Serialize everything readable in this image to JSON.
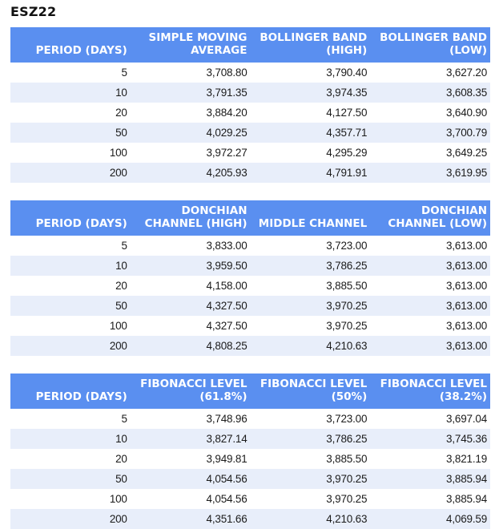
{
  "title": "ESZ22",
  "colors": {
    "header_bg": "#5A8FF0",
    "header_text": "#FFFFFF",
    "row_alt_bg": "#E8EEFA",
    "row_bg": "#FFFFFF",
    "cell_text": "#1B1B1B",
    "title_text": "#111111"
  },
  "tables": [
    {
      "columns": [
        "PERIOD (DAYS)",
        "SIMPLE MOVING\nAVERAGE",
        "BOLLINGER BAND\n(HIGH)",
        "BOLLINGER BAND\n(LOW)"
      ],
      "rows": [
        [
          "5",
          "3,708.80",
          "3,790.40",
          "3,627.20"
        ],
        [
          "10",
          "3,791.35",
          "3,974.35",
          "3,608.35"
        ],
        [
          "20",
          "3,884.20",
          "4,127.50",
          "3,640.90"
        ],
        [
          "50",
          "4,029.25",
          "4,357.71",
          "3,700.79"
        ],
        [
          "100",
          "3,972.27",
          "4,295.29",
          "3,649.25"
        ],
        [
          "200",
          "4,205.93",
          "4,791.91",
          "3,619.95"
        ]
      ]
    },
    {
      "columns": [
        "PERIOD (DAYS)",
        "DONCHIAN\nCHANNEL (HIGH)",
        "MIDDLE CHANNEL",
        "DONCHIAN\nCHANNEL (LOW)"
      ],
      "rows": [
        [
          "5",
          "3,833.00",
          "3,723.00",
          "3,613.00"
        ],
        [
          "10",
          "3,959.50",
          "3,786.25",
          "3,613.00"
        ],
        [
          "20",
          "4,158.00",
          "3,885.50",
          "3,613.00"
        ],
        [
          "50",
          "4,327.50",
          "3,970.25",
          "3,613.00"
        ],
        [
          "100",
          "4,327.50",
          "3,970.25",
          "3,613.00"
        ],
        [
          "200",
          "4,808.25",
          "4,210.63",
          "3,613.00"
        ]
      ]
    },
    {
      "columns": [
        "PERIOD (DAYS)",
        "FIBONACCI LEVEL\n(61.8%)",
        "FIBONACCI LEVEL\n(50%)",
        "FIBONACCI LEVEL\n(38.2%)"
      ],
      "rows": [
        [
          "5",
          "3,748.96",
          "3,723.00",
          "3,697.04"
        ],
        [
          "10",
          "3,827.14",
          "3,786.25",
          "3,745.36"
        ],
        [
          "20",
          "3,949.81",
          "3,885.50",
          "3,821.19"
        ],
        [
          "50",
          "4,054.56",
          "3,970.25",
          "3,885.94"
        ],
        [
          "100",
          "4,054.56",
          "3,970.25",
          "3,885.94"
        ],
        [
          "200",
          "4,351.66",
          "4,210.63",
          "4,069.59"
        ]
      ]
    }
  ]
}
